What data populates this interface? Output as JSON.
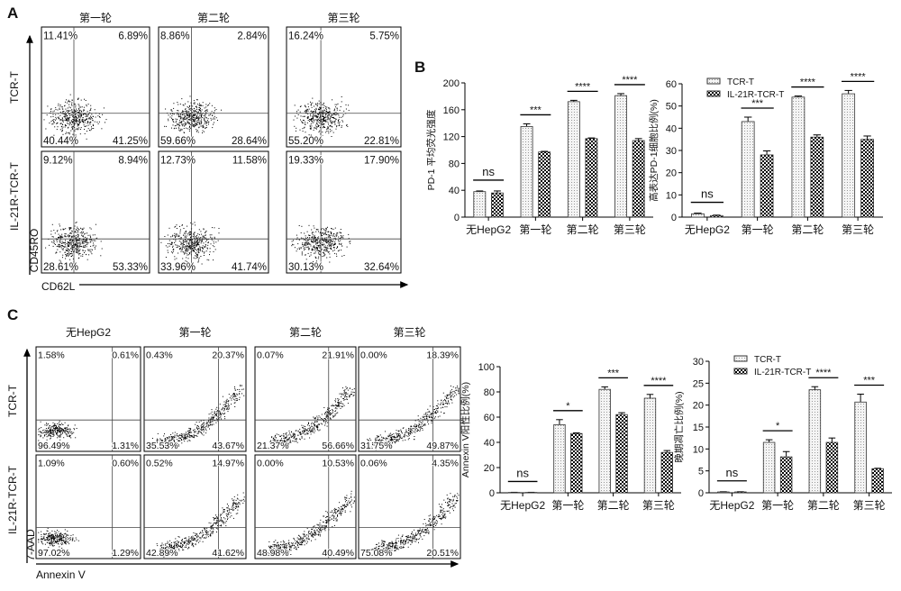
{
  "panels": {
    "a": "A",
    "b": "B",
    "c": "C"
  },
  "legend": {
    "tcr": "TCR-T",
    "il": "IL-21R-TCR-T"
  },
  "colors": {
    "bar_outline": "#333333",
    "tcr_fill": "#f2f2f2",
    "il_fill": "#000000",
    "dots": "#000000"
  },
  "flow_a": {
    "columns": [
      "第一轮",
      "第二轮",
      "第三轮"
    ],
    "rows": [
      "TCR-T",
      "IL-21R-TCR-T"
    ],
    "y_axis": "CD45RO",
    "x_axis": "CD62L",
    "quadrants": [
      [
        [
          "11.41%",
          "6.89%",
          "40.44%",
          "41.25%"
        ],
        [
          "8.86%",
          "2.84%",
          "59.66%",
          "28.64%"
        ],
        [
          "16.24%",
          "5.75%",
          "55.20%",
          "22.81%"
        ]
      ],
      [
        [
          "9.12%",
          "8.94%",
          "28.61%",
          "53.33%"
        ],
        [
          "12.73%",
          "11.58%",
          "33.96%",
          "41.74%"
        ],
        [
          "19.33%",
          "17.90%",
          "30.13%",
          "32.64%"
        ]
      ]
    ]
  },
  "flow_c": {
    "columns": [
      "无HepG2",
      "第一轮",
      "第二轮",
      "第三轮"
    ],
    "rows": [
      "TCR-T",
      "IL-21R-TCR-T"
    ],
    "y_axis": "7-AAD",
    "x_axis": "Annexin V",
    "quadrants": [
      [
        [
          "1.58%",
          "0.61%",
          "96.49%",
          "1.31%"
        ],
        [
          "0.43%",
          "20.37%",
          "35.53%",
          "43.67%"
        ],
        [
          "0.07%",
          "21.91%",
          "21.37%",
          "56.66%"
        ],
        [
          "0.00%",
          "18.39%",
          "31.75%",
          "49.87%"
        ]
      ],
      [
        [
          "1.09%",
          "0.60%",
          "97.02%",
          "1.29%"
        ],
        [
          "0.52%",
          "14.97%",
          "42.89%",
          "41.62%"
        ],
        [
          "0.00%",
          "10.53%",
          "48.98%",
          "40.49%"
        ],
        [
          "0.06%",
          "4.35%",
          "75.08%",
          "20.51%"
        ]
      ]
    ]
  },
  "chart_data": [
    {
      "type": "bar",
      "panel": "B",
      "ylabel": "PD-1 平均荧光强度",
      "categories": [
        "无HepG2",
        "第一轮",
        "第二轮",
        "第三轮"
      ],
      "ylim": [
        0,
        200
      ],
      "yticks": [
        0,
        40,
        80,
        120,
        160,
        200
      ],
      "legend": false,
      "series": [
        {
          "name": "TCR-T",
          "values": [
            38,
            135,
            172,
            181
          ],
          "errors": [
            1,
            4,
            2,
            3
          ]
        },
        {
          "name": "IL-21R-TCR-T",
          "values": [
            36,
            97,
            117,
            114
          ],
          "errors": [
            3,
            1,
            1,
            3
          ]
        }
      ],
      "significance": [
        "ns",
        "***",
        "****",
        "****"
      ]
    },
    {
      "type": "bar",
      "panel": "B",
      "ylabel": "高表达PD-1细胞比例(%)",
      "categories": [
        "无HepG2",
        "第一轮",
        "第二轮",
        "第三轮"
      ],
      "ylim": [
        0,
        60
      ],
      "yticks": [
        0,
        10,
        20,
        30,
        40,
        50,
        60
      ],
      "legend": "top-left",
      "series": [
        {
          "name": "TCR-T",
          "values": [
            1.5,
            43,
            54,
            55.5
          ],
          "errors": [
            0.3,
            2,
            0.5,
            1.5
          ]
        },
        {
          "name": "IL-21R-TCR-T",
          "values": [
            0.7,
            28,
            36,
            35
          ],
          "errors": [
            0.2,
            1.8,
            1,
            1.5
          ]
        }
      ],
      "significance": [
        "ns",
        "***",
        "****",
        "****"
      ]
    },
    {
      "type": "bar",
      "panel": "C",
      "ylabel": "Annexin V阳性比例(%)",
      "categories": [
        "无HepG2",
        "第一轮",
        "第二轮",
        "第三轮"
      ],
      "ylim": [
        0,
        100
      ],
      "yticks": [
        0,
        20,
        40,
        60,
        80,
        100
      ],
      "legend": false,
      "series": [
        {
          "name": "TCR-T",
          "values": [
            0.3,
            54,
            82,
            75
          ],
          "errors": [
            0.1,
            4,
            2,
            3
          ]
        },
        {
          "name": "IL-21R-TCR-T",
          "values": [
            0.3,
            47,
            62,
            32
          ],
          "errors": [
            0.1,
            0.5,
            1.5,
            1.5
          ]
        }
      ],
      "significance": [
        "ns",
        "*",
        "***",
        "****"
      ]
    },
    {
      "type": "bar",
      "panel": "C",
      "ylabel": "晚期凋亡比例(%)",
      "categories": [
        "无HepG2",
        "第一轮",
        "第二轮",
        "第三轮"
      ],
      "ylim": [
        0,
        30
      ],
      "yticks": [
        0,
        5,
        10,
        15,
        20,
        25,
        30
      ],
      "legend": "top-left",
      "series": [
        {
          "name": "TCR-T",
          "values": [
            0.2,
            11.5,
            23.5,
            20.7
          ],
          "errors": [
            0.05,
            0.6,
            0.7,
            1.8
          ]
        },
        {
          "name": "IL-21R-TCR-T",
          "values": [
            0.2,
            8.2,
            11.5,
            5.5
          ],
          "errors": [
            0.05,
            1.2,
            1,
            0.1
          ]
        }
      ],
      "significance": [
        "ns",
        "*",
        "****",
        "***"
      ]
    }
  ]
}
